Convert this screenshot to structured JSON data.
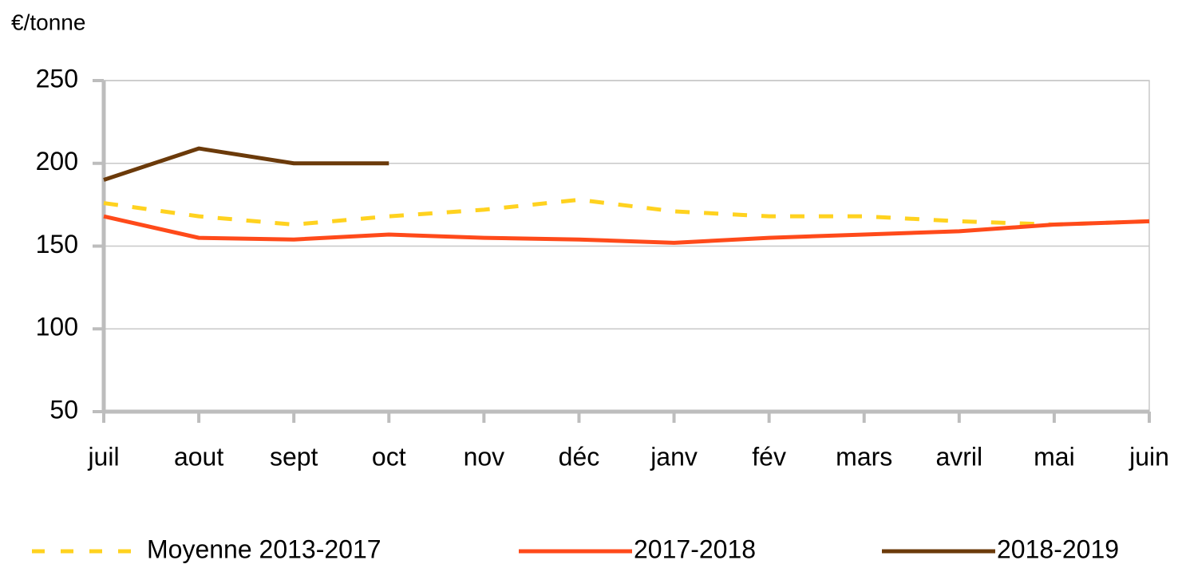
{
  "chart_data": {
    "type": "line",
    "y_label": "€/tonne",
    "categories": [
      "juil",
      "aout",
      "sept",
      "oct",
      "nov",
      "déc",
      "janv",
      "fév",
      "mars",
      "avril",
      "mai",
      "juin"
    ],
    "series": [
      {
        "name": "Moyenne 2013-2017",
        "color": "#ffd21f",
        "dash": true,
        "values": [
          176,
          168,
          163,
          168,
          172,
          178,
          171,
          168,
          168,
          165,
          163,
          165
        ]
      },
      {
        "name": "2017-2018",
        "color": "#ff4a1a",
        "dash": false,
        "values": [
          168,
          155,
          154,
          157,
          155,
          154,
          152,
          155,
          157,
          159,
          163,
          165
        ]
      },
      {
        "name": "2018-2019",
        "color": "#6b3a0a",
        "dash": false,
        "values": [
          190,
          209,
          200,
          200,
          null,
          null,
          null,
          null,
          null,
          null,
          null,
          null
        ]
      }
    ],
    "ylim": [
      50,
      250
    ],
    "yticks": [
      50,
      100,
      150,
      200,
      250
    ],
    "grid": true,
    "legend": "bottom"
  }
}
